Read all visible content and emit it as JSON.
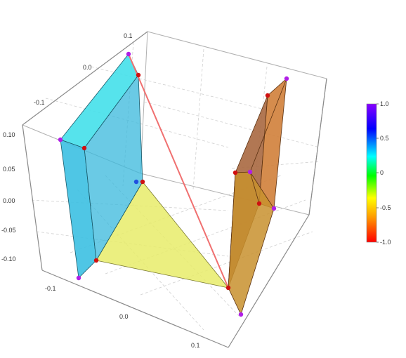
{
  "chart_data": {
    "type": "3d-polygons",
    "axes": {
      "x_ticks": [
        "-0.1",
        "0.0",
        "0.1"
      ],
      "y_ticks": [
        "-0.1",
        "0.0",
        "0.1"
      ],
      "z_ticks": [
        "0.10",
        "0.05",
        "0.00",
        "-0.05",
        "-0.10"
      ]
    },
    "colorbar": {
      "min": -1.0,
      "max": 1.0,
      "tick_labels": [
        "1.0",
        "0.5",
        "0",
        "-0.5",
        "-1.0"
      ],
      "colors": [
        "#ff0000",
        "#ff9900",
        "#ffff00",
        "#00ff00",
        "#00ffff",
        "#0000ff",
        "#8800ff"
      ]
    },
    "surfaces": [
      {
        "name": "left-panel",
        "color": "#3cc8e6"
      },
      {
        "name": "triangle",
        "color": "#e8ec6a"
      },
      {
        "name": "right-panel",
        "color": "#d0823a"
      }
    ],
    "connector_color": "#f07070",
    "points": [
      {
        "name": "left-top-back",
        "color": "#b01ee6"
      },
      {
        "name": "left-top-front",
        "color": "#b01ee6"
      },
      {
        "name": "left-bottom-front",
        "color": "#b01ee6"
      },
      {
        "name": "right-top-front",
        "color": "#b01ee6"
      },
      {
        "name": "right-mid",
        "color": "#b01ee6"
      },
      {
        "name": "right-mid-low",
        "color": "#b01ee6"
      },
      {
        "name": "right-bottom",
        "color": "#b01ee6"
      },
      {
        "name": "left-inner-top",
        "color": "#d01010"
      },
      {
        "name": "left-inner-front",
        "color": "#d01010"
      },
      {
        "name": "left-inner-mid",
        "color": "#d01010"
      },
      {
        "name": "triangle-bottom-left",
        "color": "#d01010"
      },
      {
        "name": "triangle-right",
        "color": "#d01010"
      },
      {
        "name": "right-inner-top",
        "color": "#d01010"
      },
      {
        "name": "right-inner-mid",
        "color": "#d01010"
      },
      {
        "name": "right-inner-low",
        "color": "#d01010"
      },
      {
        "name": "left-inner-blue",
        "color": "#2050e0"
      }
    ]
  }
}
